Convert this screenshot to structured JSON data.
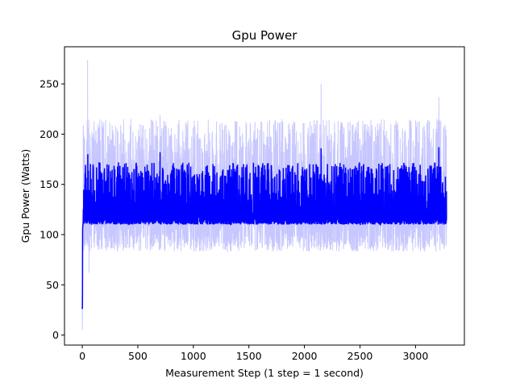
{
  "chart_data": {
    "type": "line",
    "title": "Gpu Power",
    "xlabel": "Measurement Step (1 step = 1 second)",
    "ylabel": "Gpu Power (Watts)",
    "xlim": [
      -160,
      3440
    ],
    "ylim": [
      -10,
      287
    ],
    "xticks": [
      0,
      500,
      1000,
      1500,
      2000,
      2500,
      3000
    ],
    "yticks": [
      0,
      50,
      100,
      150,
      200,
      250
    ],
    "grid": false,
    "legend": "none",
    "n_points": 3280,
    "series": [
      {
        "role": "raw",
        "color": "#0000ff",
        "opacity": 0.22,
        "start_values": [
          27,
          5,
          30,
          100,
          107,
          108,
          110,
          112
        ],
        "baseline_range": [
          83,
          215
        ],
        "peaks": [
          {
            "x": 48,
            "y": 274
          },
          {
            "x": 60,
            "y": 62
          },
          {
            "x": 700,
            "y": 219
          },
          {
            "x": 2150,
            "y": 250
          },
          {
            "x": 3210,
            "y": 237
          }
        ]
      },
      {
        "role": "smoothed",
        "color": "#0000ff",
        "opacity": 1.0,
        "start_values": [
          27,
          26,
          40,
          105,
          107,
          109,
          110,
          111
        ],
        "floor": 110,
        "typical_peak_range": [
          150,
          172
        ],
        "peaks": [
          {
            "x": 50,
            "y": 180
          },
          {
            "x": 700,
            "y": 182
          },
          {
            "x": 2150,
            "y": 186
          },
          {
            "x": 3210,
            "y": 187
          }
        ]
      }
    ]
  }
}
